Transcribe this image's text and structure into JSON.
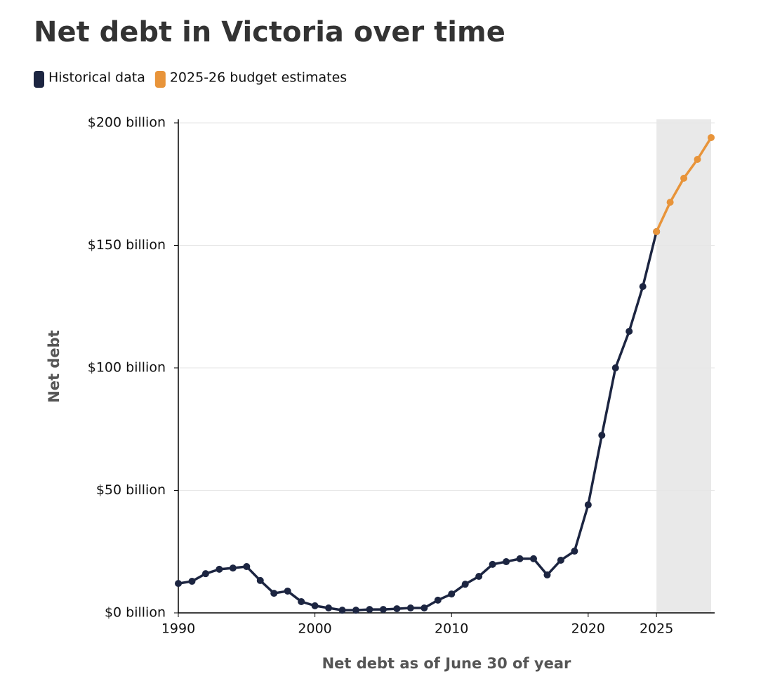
{
  "chart_data": {
    "type": "line",
    "title": "Net debt in Victoria over time",
    "x_label": "Net debt as of June 30 of year",
    "y_label": "Net debt",
    "x": [
      1990,
      1991,
      1992,
      1993,
      1994,
      1995,
      1996,
      1997,
      1998,
      1999,
      2000,
      2001,
      2002,
      2003,
      2004,
      2005,
      2006,
      2007,
      2008,
      2009,
      2010,
      2011,
      2012,
      2013,
      2014,
      2015,
      2016,
      2017,
      2018,
      2019,
      2020,
      2021,
      2022,
      2023,
      2024,
      2025,
      2026,
      2027,
      2028,
      2029
    ],
    "series": [
      {
        "name": "Historical data",
        "color": "#1c2541",
        "values": [
          12.0,
          12.9,
          16.0,
          17.8,
          18.3,
          18.9,
          13.2,
          8.0,
          8.9,
          4.6,
          2.9,
          2.0,
          1.1,
          1.1,
          1.4,
          1.4,
          1.7,
          2.0,
          2.0,
          5.2,
          7.7,
          11.7,
          14.9,
          19.8,
          20.9,
          22.1,
          22.1,
          15.5,
          21.5,
          25.2,
          44.1,
          72.5,
          100.0,
          114.9,
          133.2,
          155.6,
          null,
          null,
          null,
          null
        ]
      },
      {
        "name": "2025-26 budget estimates",
        "color": "#e8943a",
        "values": [
          null,
          null,
          null,
          null,
          null,
          null,
          null,
          null,
          null,
          null,
          null,
          null,
          null,
          null,
          null,
          null,
          null,
          null,
          null,
          null,
          null,
          null,
          null,
          null,
          null,
          null,
          null,
          null,
          null,
          null,
          null,
          null,
          null,
          null,
          null,
          155.6,
          167.6,
          177.4,
          185.1,
          194.0
        ]
      }
    ],
    "xlim": [
      1990,
      2029
    ],
    "ylim": [
      0,
      200
    ],
    "xticks": [
      1990,
      2000,
      2010,
      2020,
      2025
    ],
    "yticks": [
      {
        "value": 0,
        "label": "$0 billion"
      },
      {
        "value": 50,
        "label": "$50 billion"
      },
      {
        "value": 100,
        "label": "$100 billion"
      },
      {
        "value": 150,
        "label": "$150 billion"
      },
      {
        "value": 200,
        "label": "$200 billion"
      }
    ],
    "highlight_xrange": [
      2025,
      2029
    ],
    "grid": true
  }
}
